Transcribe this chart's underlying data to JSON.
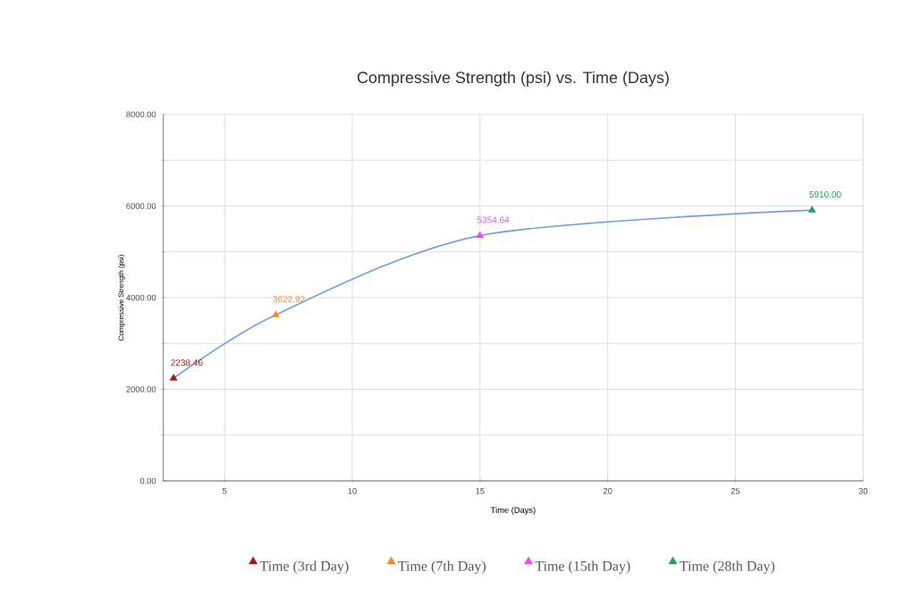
{
  "chart_data": {
    "type": "line",
    "title": "Compressive Strength (psi) vs. Time (Days)",
    "xlabel": "Time (Days)",
    "ylabel": "Compressive Strength (psi)",
    "xlim": [
      2.6,
      30
    ],
    "xticks": [
      5,
      10,
      15,
      20,
      25,
      30
    ],
    "ylim": [
      0,
      8000
    ],
    "yticks": [
      {
        "value": 0,
        "label": "0.00"
      },
      {
        "value": 1000,
        "label": null
      },
      {
        "value": 2000,
        "label": "2000.00"
      },
      {
        "value": 3000,
        "label": null
      },
      {
        "value": 4000,
        "label": "4000.00"
      },
      {
        "value": 5000,
        "label": null
      },
      {
        "value": 6000,
        "label": "6000.00"
      },
      {
        "value": 7000,
        "label": null
      },
      {
        "value": 8000,
        "label": "8000.00"
      }
    ],
    "grid": true,
    "legend": "bottom",
    "marker": "triangle",
    "series": [
      {
        "color": "#6fa0e8",
        "marker": "none",
        "x": [
          3,
          7,
          15,
          28
        ],
        "values": [
          2238.46,
          3622.92,
          5354.64,
          5910.0
        ]
      },
      {
        "type": "scatter",
        "name": "Time (3rd Day)",
        "color": "#a01818",
        "x": [
          3
        ],
        "values": [
          2238.46
        ],
        "value_labels": [
          "2238.46"
        ]
      },
      {
        "type": "scatter",
        "name": "Time (7th Day)",
        "color": "#f08a2c",
        "x": [
          7
        ],
        "values": [
          3622.92
        ],
        "value_labels": [
          "3622.92"
        ]
      },
      {
        "type": "scatter",
        "name": "Time (15th Day)",
        "color": "#f04ae8",
        "x": [
          15
        ],
        "values": [
          5354.64
        ],
        "value_labels": [
          "5354.64"
        ]
      },
      {
        "type": "scatter",
        "name": "Time (28th Day)",
        "color": "#2e9a5a",
        "x": [
          28
        ],
        "values": [
          5910.0
        ],
        "value_labels": [
          "5910.00"
        ]
      }
    ]
  }
}
